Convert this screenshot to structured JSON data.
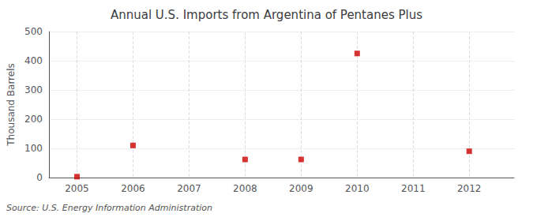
{
  "chart_data": {
    "type": "scatter",
    "title": "Annual U.S. Imports from Argentina of Pentanes Plus",
    "ylabel": "Thousand Barrels",
    "annotation": "Source: U.S. Energy Information Administration",
    "x": [
      2005,
      2006,
      2008,
      2009,
      2010,
      2012
    ],
    "values": [
      3,
      110,
      62,
      62,
      425,
      90
    ],
    "color": "#cc0000",
    "marker": "square",
    "xlim": [
      2004.5,
      2012.8
    ],
    "xticks": [
      2005,
      2006,
      2007,
      2008,
      2009,
      2010,
      2011,
      2012
    ],
    "ylim": [
      0,
      500
    ],
    "yticks": [
      0,
      100,
      200,
      300,
      400,
      500
    ],
    "grid": true
  }
}
